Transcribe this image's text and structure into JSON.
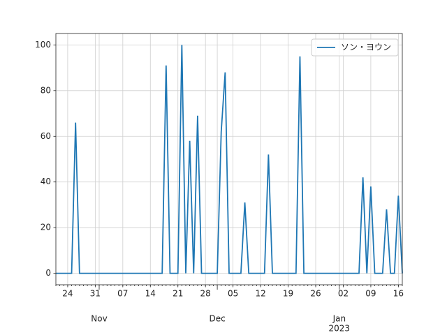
{
  "chart_data": {
    "type": "line",
    "x": [
      "2022-10-21",
      "2022-10-22",
      "2022-10-23",
      "2022-10-24",
      "2022-10-25",
      "2022-10-26",
      "2022-10-27",
      "2022-10-28",
      "2022-10-29",
      "2022-10-30",
      "2022-10-31",
      "2022-11-01",
      "2022-11-02",
      "2022-11-03",
      "2022-11-04",
      "2022-11-05",
      "2022-11-06",
      "2022-11-07",
      "2022-11-08",
      "2022-11-09",
      "2022-11-10",
      "2022-11-11",
      "2022-11-12",
      "2022-11-13",
      "2022-11-14",
      "2022-11-15",
      "2022-11-16",
      "2022-11-17",
      "2022-11-18",
      "2022-11-19",
      "2022-11-20",
      "2022-11-21",
      "2022-11-22",
      "2022-11-23",
      "2022-11-24",
      "2022-11-25",
      "2022-11-26",
      "2022-11-27",
      "2022-11-28",
      "2022-11-29",
      "2022-11-30",
      "2022-12-01",
      "2022-12-02",
      "2022-12-03",
      "2022-12-04",
      "2022-12-05",
      "2022-12-06",
      "2022-12-07",
      "2022-12-08",
      "2022-12-09",
      "2022-12-10",
      "2022-12-11",
      "2022-12-12",
      "2022-12-13",
      "2022-12-14",
      "2022-12-15",
      "2022-12-16",
      "2022-12-17",
      "2022-12-18",
      "2022-12-19",
      "2022-12-20",
      "2022-12-21",
      "2022-12-22",
      "2022-12-23",
      "2022-12-24",
      "2022-12-25",
      "2022-12-26",
      "2022-12-27",
      "2022-12-28",
      "2022-12-29",
      "2022-12-30",
      "2022-12-31",
      "2023-01-01",
      "2023-01-02",
      "2023-01-03",
      "2023-01-04",
      "2023-01-05",
      "2023-01-06",
      "2023-01-07",
      "2023-01-08",
      "2023-01-09",
      "2023-01-10",
      "2023-01-11",
      "2023-01-12",
      "2023-01-13",
      "2023-01-14",
      "2023-01-15",
      "2023-01-16",
      "2023-01-17"
    ],
    "series": [
      {
        "name": "ソン・ヨウン",
        "color": "#1f77b4",
        "values": [
          0,
          0,
          0,
          0,
          0,
          66,
          0,
          0,
          0,
          0,
          0,
          0,
          0,
          0,
          0,
          0,
          0,
          0,
          0,
          0,
          0,
          0,
          0,
          0,
          0,
          0,
          0,
          0,
          91,
          0,
          0,
          0,
          100,
          0,
          58,
          0,
          69,
          0,
          0,
          0,
          0,
          0,
          62,
          88,
          0,
          0,
          0,
          0,
          31,
          0,
          0,
          0,
          0,
          0,
          52,
          0,
          0,
          0,
          0,
          0,
          0,
          0,
          95,
          0,
          0,
          0,
          0,
          0,
          0,
          0,
          0,
          0,
          0,
          0,
          0,
          0,
          0,
          0,
          42,
          0,
          38,
          0,
          0,
          0,
          28,
          0,
          0,
          34,
          0
        ]
      }
    ],
    "xlim": [
      "2022-10-21",
      "2023-01-17"
    ],
    "xticks": [
      {
        "value": "2022-10-24",
        "label": "24"
      },
      {
        "value": "2022-10-31",
        "label": "31"
      },
      {
        "value": "2022-11-07",
        "label": "07"
      },
      {
        "value": "2022-11-14",
        "label": "14"
      },
      {
        "value": "2022-11-21",
        "label": "21"
      },
      {
        "value": "2022-11-28",
        "label": "28"
      },
      {
        "value": "2022-12-05",
        "label": "05"
      },
      {
        "value": "2022-12-12",
        "label": "12"
      },
      {
        "value": "2022-12-19",
        "label": "19"
      },
      {
        "value": "2022-12-26",
        "label": "26"
      },
      {
        "value": "2023-01-02",
        "label": "02"
      },
      {
        "value": "2023-01-09",
        "label": "09"
      },
      {
        "value": "2023-01-16",
        "label": "16"
      }
    ],
    "xticks_major": [
      {
        "value": "2022-11-01",
        "label": "Nov"
      },
      {
        "value": "2022-12-01",
        "label": "Dec"
      },
      {
        "value": "2023-01-01",
        "label": "Jan",
        "year": "2023"
      }
    ],
    "ylim": [
      -5,
      105
    ],
    "yticks": [
      0,
      20,
      40,
      60,
      80,
      100
    ],
    "grid": true,
    "legend": "upper right"
  }
}
